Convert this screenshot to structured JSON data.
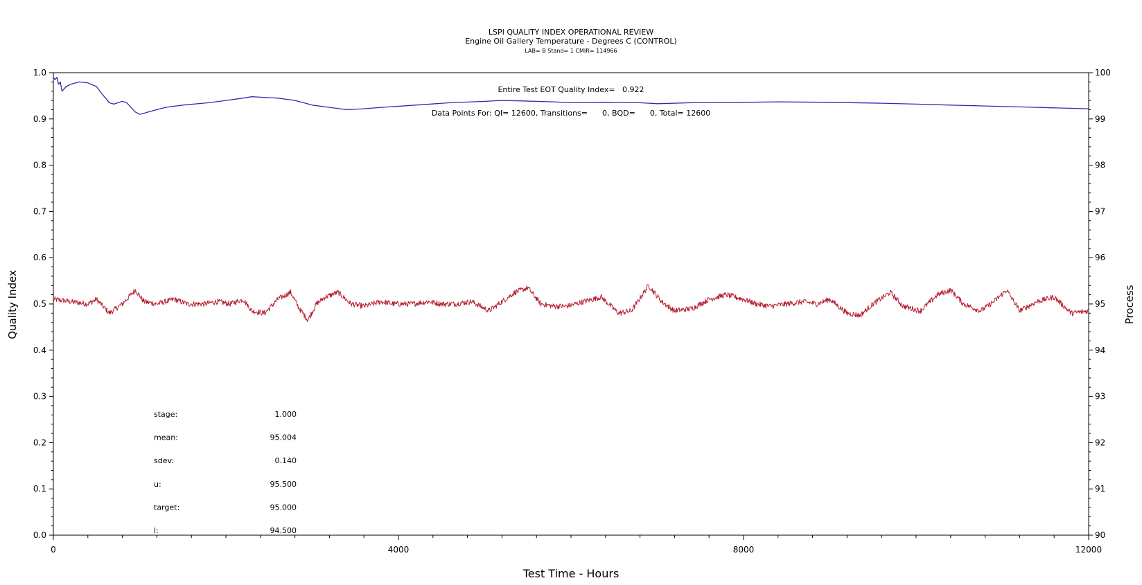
{
  "chart_data": {
    "type": "line",
    "title": "LSPI QUALITY INDEX OPERATIONAL REVIEW",
    "subtitle": "Engine Oil Gallery Temperature - Degrees C (CONTROL)",
    "subtitle2": "LAB= B Stand= 1 CMIR= 114966",
    "xlabel": "Test Time - Hours",
    "ylabel_left": "Quality Index",
    "ylabel_right": "Process",
    "xlim": [
      0,
      12000
    ],
    "ylim_left": [
      0,
      1.0
    ],
    "ylim_right": [
      90,
      100
    ],
    "x_ticks": [
      "0",
      "4000",
      "8000",
      "12000"
    ],
    "y_left_ticks": [
      "0.0",
      "0.1",
      "0.2",
      "0.3",
      "0.4",
      "0.5",
      "0.6",
      "0.7",
      "0.8",
      "0.9",
      "1.0"
    ],
    "y_right_ticks": [
      "90",
      "91",
      "92",
      "93",
      "94",
      "95",
      "96",
      "97",
      "98",
      "99",
      "100"
    ],
    "grid": false,
    "annotations": {
      "quality_index_line": "Entire Test EOT Quality Index=   0.922",
      "data_points_line": "Data Points For: QI= 12600, Transitions=      0, BQD=      0, Total= 12600"
    },
    "stats": [
      {
        "label": "stage:",
        "value": "1.000"
      },
      {
        "label": "mean:",
        "value": "95.004"
      },
      {
        "label": "sdev:",
        "value": "0.140"
      },
      {
        "label": "u:",
        "value": "95.500"
      },
      {
        "label": "target:",
        "value": "95.000"
      },
      {
        "label": "l:",
        "value": "94.500"
      }
    ],
    "series": [
      {
        "color": "#2b2baf",
        "axis": "left",
        "x": [
          0,
          20,
          40,
          60,
          80,
          100,
          150,
          200,
          300,
          400,
          500,
          560,
          650,
          700,
          750,
          800,
          850,
          900,
          950,
          1000,
          1050,
          1100,
          1200,
          1300,
          1500,
          1800,
          2000,
          2200,
          2300,
          2400,
          2500,
          2600,
          2800,
          2900,
          3000,
          3200,
          3400,
          3600,
          3800,
          4200,
          4600,
          5000,
          5200,
          5400,
          5600,
          5800,
          6000,
          6400,
          6800,
          7000,
          7400,
          8000,
          8400,
          9000,
          9600,
          10000,
          10400,
          10800,
          11200,
          11600,
          12000
        ],
        "y": [
          0.99,
          0.985,
          0.99,
          0.975,
          0.98,
          0.96,
          0.97,
          0.975,
          0.98,
          0.978,
          0.97,
          0.955,
          0.935,
          0.932,
          0.935,
          0.938,
          0.935,
          0.925,
          0.915,
          0.91,
          0.912,
          0.915,
          0.92,
          0.925,
          0.93,
          0.935,
          0.94,
          0.945,
          0.948,
          0.947,
          0.946,
          0.945,
          0.94,
          0.935,
          0.93,
          0.925,
          0.92,
          0.922,
          0.925,
          0.93,
          0.935,
          0.938,
          0.94,
          0.939,
          0.938,
          0.937,
          0.935,
          0.936,
          0.935,
          0.933,
          0.935,
          0.936,
          0.937,
          0.936,
          0.934,
          0.932,
          0.93,
          0.928,
          0.926,
          0.924,
          0.922
        ]
      },
      {
        "color": "#b41e2d",
        "axis": "right",
        "x": [
          0,
          200,
          400,
          500,
          650,
          800,
          950,
          1050,
          1200,
          1400,
          1550,
          1750,
          1900,
          2050,
          2200,
          2300,
          2450,
          2600,
          2750,
          2850,
          2950,
          3050,
          3150,
          3300,
          3450,
          3600,
          3800,
          3950,
          4150,
          4350,
          4500,
          4650,
          4850,
          5050,
          5200,
          5350,
          5500,
          5650,
          5800,
          5950,
          6150,
          6350,
          6550,
          6700,
          6900,
          7050,
          7200,
          7400,
          7600,
          7800,
          8000,
          8150,
          8300,
          8500,
          8700,
          8850,
          9000,
          9200,
          9350,
          9500,
          9700,
          9850,
          10050,
          10250,
          10400,
          10550,
          10750,
          10900,
          11050,
          11200,
          11400,
          11600,
          11800,
          12000
        ],
        "y": [
          95.1,
          95.05,
          95.0,
          95.1,
          94.8,
          95.0,
          95.3,
          95.05,
          95.0,
          95.1,
          95.0,
          95.0,
          95.05,
          95.0,
          95.1,
          94.85,
          94.8,
          95.1,
          95.25,
          94.9,
          94.65,
          95.0,
          95.15,
          95.25,
          95.0,
          94.95,
          95.05,
          95.0,
          95.0,
          95.05,
          95.0,
          95.0,
          95.05,
          94.85,
          95.05,
          95.25,
          95.35,
          95.0,
          94.95,
          94.95,
          95.05,
          95.15,
          94.8,
          94.85,
          95.4,
          95.05,
          94.85,
          94.9,
          95.1,
          95.2,
          95.1,
          95.0,
          94.95,
          95.0,
          95.05,
          95.0,
          95.1,
          94.8,
          94.75,
          95.0,
          95.25,
          94.95,
          94.85,
          95.2,
          95.3,
          95.0,
          94.85,
          95.05,
          95.3,
          94.85,
          95.05,
          95.15,
          94.8,
          94.85
        ]
      }
    ]
  }
}
